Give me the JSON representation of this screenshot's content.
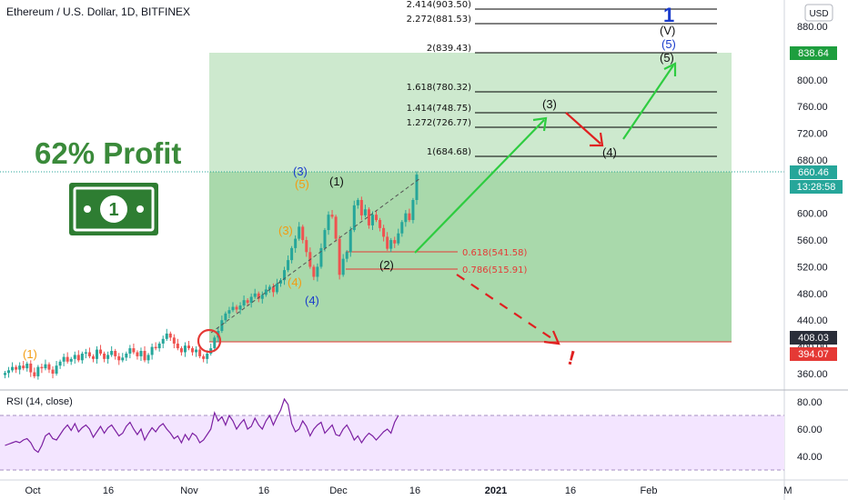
{
  "header": {
    "symbol_title": "Ethereum / U.S. Dollar, 1D, BITFINEX",
    "currency_button": "USD"
  },
  "overlay": {
    "profit_text": "62% Profit",
    "money_icon": "dollar-bill-icon"
  },
  "price_tags": {
    "target": "838.64",
    "current": "660.46",
    "countdown": "13:28:58",
    "entry": "408.03",
    "stop": "394.07"
  },
  "colors": {
    "up": "#26a69a",
    "down": "#ef5350",
    "zone_green": "#4caf50",
    "profit_text": "#3a8a3a",
    "arrow_green": "#2ecc40",
    "arrow_red": "#e02020",
    "rsi_line": "#7b1fa2",
    "rsi_band": "#f3e5ff"
  },
  "chart_data": {
    "type": "candlestick",
    "title": "Ethereum / U.S. Dollar, 1D, BITFINEX",
    "y_axis": {
      "ticks": [
        "880.00",
        "840.00",
        "800.00",
        "760.00",
        "720.00",
        "680.00",
        "640.00",
        "600.00",
        "560.00",
        "520.00",
        "480.00",
        "440.00",
        "400.00",
        "360.00"
      ],
      "range": [
        338,
        930
      ]
    },
    "x_axis": {
      "ticks": [
        "Oct",
        "16",
        "Nov",
        "16",
        "Dec",
        "16",
        "2021",
        "16",
        "Feb",
        "M"
      ]
    },
    "series_close": [
      361,
      365,
      370,
      366,
      372,
      368,
      375,
      362,
      356,
      370,
      368,
      374,
      366,
      360,
      372,
      378,
      385,
      378,
      382,
      388,
      380,
      390,
      392,
      386,
      382,
      396,
      390,
      382,
      388,
      394,
      386,
      380,
      384,
      390,
      398,
      392,
      386,
      394,
      380,
      388,
      400,
      398,
      405,
      412,
      420,
      414,
      405,
      398,
      392,
      402,
      398,
      392,
      396,
      386,
      382,
      390,
      398,
      414,
      424,
      440,
      450,
      455,
      460,
      456,
      462,
      470,
      466,
      475,
      480,
      472,
      478,
      486,
      490,
      482,
      495,
      500,
      515,
      530,
      548,
      562,
      580,
      560,
      542,
      520,
      505,
      520,
      548,
      575,
      598,
      595,
      562,
      508,
      532,
      542,
      575,
      612,
      620,
      597,
      606,
      582,
      598,
      590,
      578,
      565,
      547,
      560,
      555,
      570,
      587,
      600,
      590,
      620,
      658
    ],
    "annotations": {
      "fib_extensions": [
        "2.414(903.50)",
        "2.272(881.53)",
        "2(839.43)",
        "1.618(780.32)",
        "1.414(748.75)",
        "1.272(726.77)",
        "1(684.68)"
      ],
      "fib_retracements": [
        "0.618(541.58)",
        "0.786(515.91)"
      ],
      "wave_labels_black": [
        "(1)",
        "(2)",
        "(3)",
        "(4)",
        "(5)",
        "(V)"
      ],
      "wave_labels_orange": [
        "(1)",
        "(3)",
        "(4)",
        "(5)"
      ],
      "wave_labels_blue": [
        "(3)",
        "(4)",
        "(5)",
        "1"
      ],
      "exclamation": "!"
    }
  },
  "rsi": {
    "label": "RSI (14, close)",
    "ticks": [
      "80.00",
      "60.00",
      "40.00"
    ],
    "values": [
      48,
      49,
      50,
      51,
      50,
      52,
      53,
      50,
      45,
      43,
      48,
      55,
      57,
      53,
      52,
      56,
      60,
      63,
      59,
      64,
      58,
      61,
      63,
      60,
      54,
      58,
      62,
      57,
      61,
      63,
      59,
      55,
      57,
      62,
      65,
      60,
      56,
      60,
      52,
      57,
      61,
      58,
      62,
      64,
      60,
      57,
      53,
      55,
      50,
      56,
      52,
      57,
      55,
      50,
      52,
      56,
      60,
      72,
      66,
      69,
      63,
      70,
      66,
      60,
      64,
      67,
      60,
      62,
      68,
      63,
      60,
      66,
      70,
      63,
      69,
      74,
      82,
      78,
      64,
      58,
      60,
      66,
      62,
      55,
      60,
      63,
      65,
      57,
      60,
      63,
      56,
      55,
      60,
      63,
      58,
      52,
      55,
      50,
      54,
      57,
      55,
      52,
      55,
      58,
      60,
      57,
      65,
      70
    ]
  }
}
